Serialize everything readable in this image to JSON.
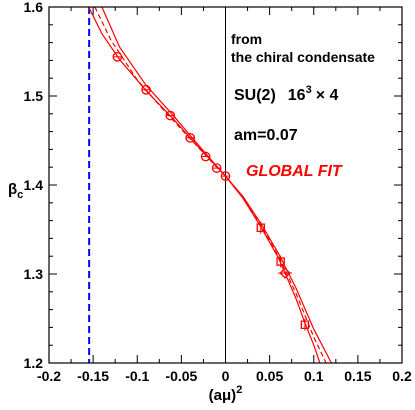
{
  "chart_data": {
    "type": "scatter",
    "xlabel": "(aμ)",
    "xlabel_sup": "2",
    "ylabel": "β",
    "ylabel_sub": "c",
    "xlim": [
      -0.2,
      0.2
    ],
    "ylim": [
      1.2,
      1.6
    ],
    "x_ticks": [
      -0.2,
      -0.15,
      -0.1,
      -0.05,
      0,
      0.05,
      0.1,
      0.15,
      0.2
    ],
    "x_tick_labels": [
      "-0.2",
      "-0.15",
      "-0.1",
      "-0.05",
      "0",
      "0.05",
      "0.1",
      "0.15",
      "0.2"
    ],
    "y_ticks": [
      1.2,
      1.3,
      1.4,
      1.5,
      1.6
    ],
    "y_tick_labels": [
      "1.2",
      "1.3",
      "1.4",
      "1.5",
      "1.6"
    ],
    "annotations": {
      "line1": "from",
      "line2": "the chiral condensate",
      "model_base": "SU(2)",
      "model_lattice": "16",
      "model_exp": "3",
      "model_tail": "× 4",
      "mass": "am=0.07",
      "fit": "GLOBAL FIT"
    },
    "colors": {
      "fit": "#ff0000",
      "critical_line": "#0000ff",
      "axis": "#000000"
    },
    "vertical_line_x": 0,
    "dashed_vertical_line_x": -0.1545,
    "series": [
      {
        "marker": "circle",
        "points": [
          {
            "x": -0.1225,
            "y": 1.544
          },
          {
            "x": -0.09,
            "y": 1.507
          },
          {
            "x": -0.0625,
            "y": 1.478
          },
          {
            "x": -0.04,
            "y": 1.453
          },
          {
            "x": -0.0225,
            "y": 1.432
          },
          {
            "x": -0.01,
            "y": 1.419
          },
          {
            "x": 0,
            "y": 1.41
          }
        ]
      },
      {
        "marker": "square",
        "points": [
          {
            "x": 0.04,
            "y": 1.352
          },
          {
            "x": 0.0625,
            "y": 1.314
          },
          {
            "x": 0.09,
            "y": 1.243
          }
        ]
      },
      {
        "marker": "diamond",
        "points": [
          {
            "x": 0.0675,
            "y": 1.301
          }
        ]
      }
    ],
    "fit_curves": [
      {
        "style": "solid",
        "points": [
          [
            -0.155,
            1.6
          ],
          [
            -0.14,
            1.57
          ],
          [
            -0.12,
            1.541
          ],
          [
            -0.09,
            1.506
          ],
          [
            -0.06,
            1.475
          ],
          [
            -0.03,
            1.442
          ],
          [
            -0.01,
            1.421
          ],
          [
            0,
            1.41
          ],
          [
            0.02,
            1.385
          ],
          [
            0.04,
            1.353
          ],
          [
            0.06,
            1.318
          ],
          [
            0.08,
            1.272
          ],
          [
            0.09,
            1.245
          ],
          [
            0.1,
            1.22
          ],
          [
            0.107,
            1.2
          ]
        ]
      },
      {
        "style": "dashed",
        "points": [
          [
            -0.148,
            1.6
          ],
          [
            -0.13,
            1.563
          ],
          [
            -0.1,
            1.518
          ],
          [
            -0.07,
            1.484
          ],
          [
            -0.04,
            1.452
          ],
          [
            -0.01,
            1.42
          ],
          [
            0,
            1.41
          ],
          [
            0.02,
            1.386
          ],
          [
            0.04,
            1.355
          ],
          [
            0.06,
            1.32
          ],
          [
            0.08,
            1.278
          ],
          [
            0.1,
            1.229
          ],
          [
            0.114,
            1.2
          ]
        ]
      },
      {
        "style": "solid",
        "points": [
          [
            -0.14,
            1.6
          ],
          [
            -0.12,
            1.555
          ],
          [
            -0.09,
            1.512
          ],
          [
            -0.06,
            1.479
          ],
          [
            -0.03,
            1.444
          ],
          [
            -0.01,
            1.421
          ],
          [
            0,
            1.41
          ],
          [
            0.02,
            1.387
          ],
          [
            0.04,
            1.357
          ],
          [
            0.06,
            1.323
          ],
          [
            0.08,
            1.284
          ],
          [
            0.1,
            1.238
          ],
          [
            0.12,
            1.2
          ]
        ]
      }
    ]
  }
}
